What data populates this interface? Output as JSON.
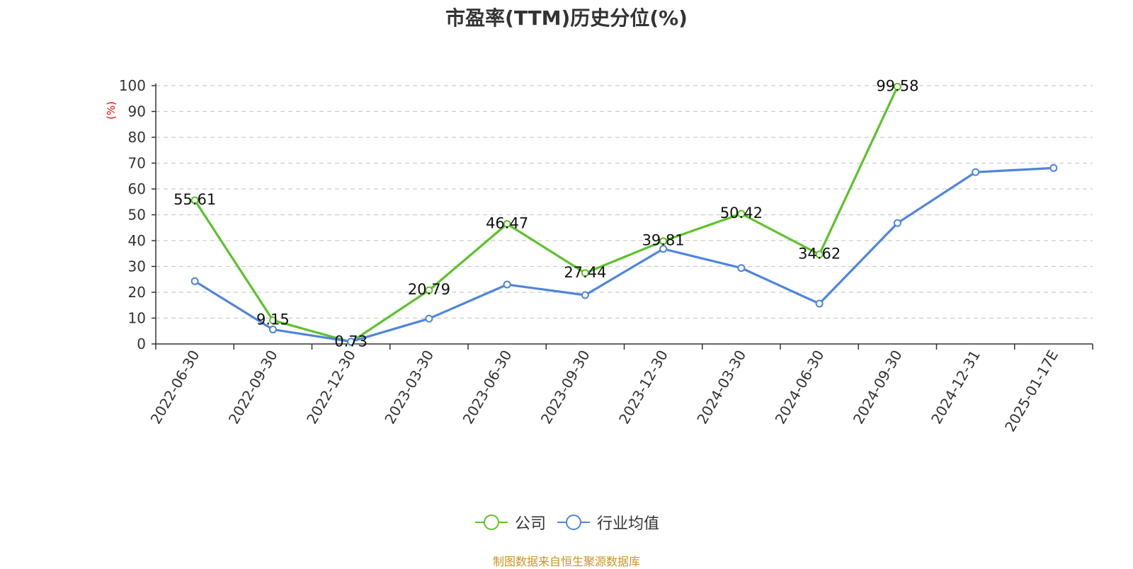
{
  "chart_data": {
    "type": "line",
    "title": "市盈率(TTM)历史分位(%)",
    "ylabel": "(%)",
    "xlabel": "",
    "ylim": [
      0,
      100
    ],
    "yticks": [
      0,
      10,
      20,
      30,
      40,
      50,
      60,
      70,
      80,
      90,
      100
    ],
    "grid": true,
    "legend_position": "bottom",
    "categories": [
      "2022-06-30",
      "2022-09-30",
      "2022-12-30",
      "2023-03-30",
      "2023-06-30",
      "2023-09-30",
      "2023-12-30",
      "2024-03-30",
      "2024-06-30",
      "2024-09-30",
      "2024-12-31",
      "2025-01-17E"
    ],
    "series": [
      {
        "name": "公司",
        "color": "#5cc22a",
        "values": [
          55.61,
          9.15,
          0.73,
          20.79,
          46.47,
          27.44,
          39.81,
          50.42,
          34.62,
          99.58,
          null,
          null
        ],
        "labels": [
          "55.61",
          "9.15",
          "0.73",
          "20.79",
          "46.47",
          "27.44",
          "39.81",
          "50.42",
          "34.62",
          "99.58",
          "",
          ""
        ]
      },
      {
        "name": "行业均值",
        "color": "#4f84dc",
        "values": [
          24.3,
          5.6,
          0.9,
          9.8,
          23.0,
          18.9,
          36.8,
          29.4,
          15.6,
          46.8,
          66.5,
          68.1
        ]
      }
    ]
  },
  "source_note": "制图数据来自恒生聚源数据库"
}
